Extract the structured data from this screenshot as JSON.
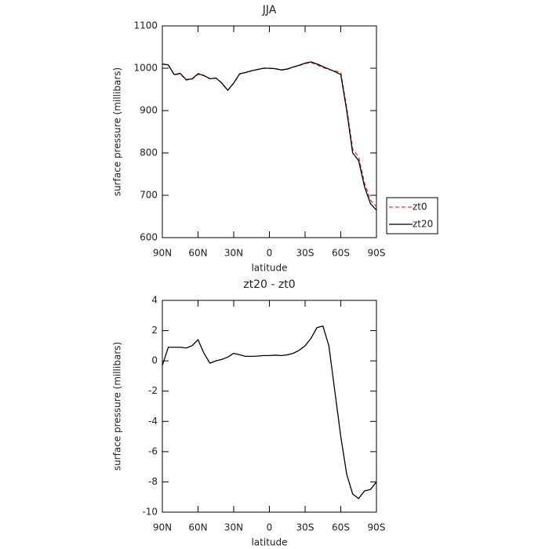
{
  "chart_data": [
    {
      "type": "line",
      "title": "JJA",
      "x_label": "latitude",
      "y_label": "surface pressure (millibars)",
      "x": [
        90,
        85,
        80,
        75,
        70,
        65,
        60,
        55,
        50,
        45,
        40,
        35,
        30,
        25,
        20,
        15,
        10,
        5,
        0,
        -5,
        -10,
        -15,
        -20,
        -25,
        -30,
        -35,
        -40,
        -45,
        -50,
        -55,
        -60,
        -65,
        -70,
        -75,
        -80,
        -85,
        -90
      ],
      "series": [
        {
          "name": "zt0",
          "color": "#e8342c",
          "dash": true,
          "values": [
            1010.3,
            1007.1,
            984.1,
            987.1,
            972.2,
            974,
            985.6,
            982.5,
            975.2,
            977,
            964.9,
            947.8,
            964.5,
            986.6,
            989.7,
            993.7,
            996.7,
            999.6,
            999.6,
            998.6,
            995.6,
            997.6,
            1002.5,
            1006.3,
            1011,
            1013.5,
            1007.8,
            1001.7,
            997,
            994,
            990,
            907.5,
            808.8,
            791.1,
            728.6,
            688.5,
            673
          ]
        },
        {
          "name": "zt20",
          "color": "#000000",
          "dash": false,
          "values": [
            1010,
            1008,
            985,
            988,
            973,
            975,
            987,
            983,
            975,
            977,
            965,
            948,
            965,
            987,
            990,
            994,
            997,
            1000,
            1000,
            999,
            996,
            998,
            1003,
            1007,
            1012,
            1015,
            1010,
            1004,
            998,
            992,
            985,
            900,
            800,
            782,
            720,
            680,
            665
          ]
        }
      ],
      "xlim": [
        90,
        -90
      ],
      "xticks": [
        {
          "value": 90,
          "label": "90N"
        },
        {
          "value": 60,
          "label": "60N"
        },
        {
          "value": 30,
          "label": "30N"
        },
        0,
        {
          "value": -30,
          "label": "30S"
        },
        {
          "value": -60,
          "label": "60S"
        },
        {
          "value": -90,
          "label": "90S"
        }
      ],
      "ylim": [
        600,
        1100
      ],
      "yticks": [
        600,
        700,
        800,
        900,
        1000,
        1100
      ]
    },
    {
      "type": "line",
      "title": "zt20 - zt0",
      "x_label": "latitude",
      "y_label": "surface pressure (millibars)",
      "x": [
        90,
        85,
        80,
        75,
        70,
        65,
        60,
        55,
        50,
        45,
        40,
        35,
        30,
        25,
        20,
        15,
        10,
        5,
        0,
        -5,
        -10,
        -15,
        -20,
        -25,
        -30,
        -35,
        -40,
        -45,
        -50,
        -55,
        -60,
        -65,
        -70,
        -75,
        -80,
        -85,
        -90
      ],
      "values": [
        -0.3,
        0.9,
        0.9,
        0.9,
        0.85,
        1.0,
        1.4,
        0.5,
        -0.15,
        0,
        0.1,
        0.25,
        0.5,
        0.4,
        0.3,
        0.3,
        0.32,
        0.35,
        0.35,
        0.38,
        0.35,
        0.4,
        0.5,
        0.7,
        1.0,
        1.5,
        2.2,
        2.3,
        1.0,
        -2.0,
        -5.0,
        -7.5,
        -8.8,
        -9.1,
        -8.6,
        -8.5,
        -8.0
      ],
      "color": "#000000",
      "xlim": [
        90,
        -90
      ],
      "xticks": [
        {
          "value": 90,
          "label": "90N"
        },
        {
          "value": 60,
          "label": "60N"
        },
        {
          "value": 30,
          "label": "30N"
        },
        0,
        {
          "value": -30,
          "label": "30S"
        },
        {
          "value": -60,
          "label": "60S"
        },
        {
          "value": -90,
          "label": "90S"
        }
      ],
      "ylim": [
        -10,
        4
      ],
      "yticks": [
        -10,
        -8,
        -6,
        -4,
        -2,
        0,
        2,
        4
      ]
    }
  ]
}
